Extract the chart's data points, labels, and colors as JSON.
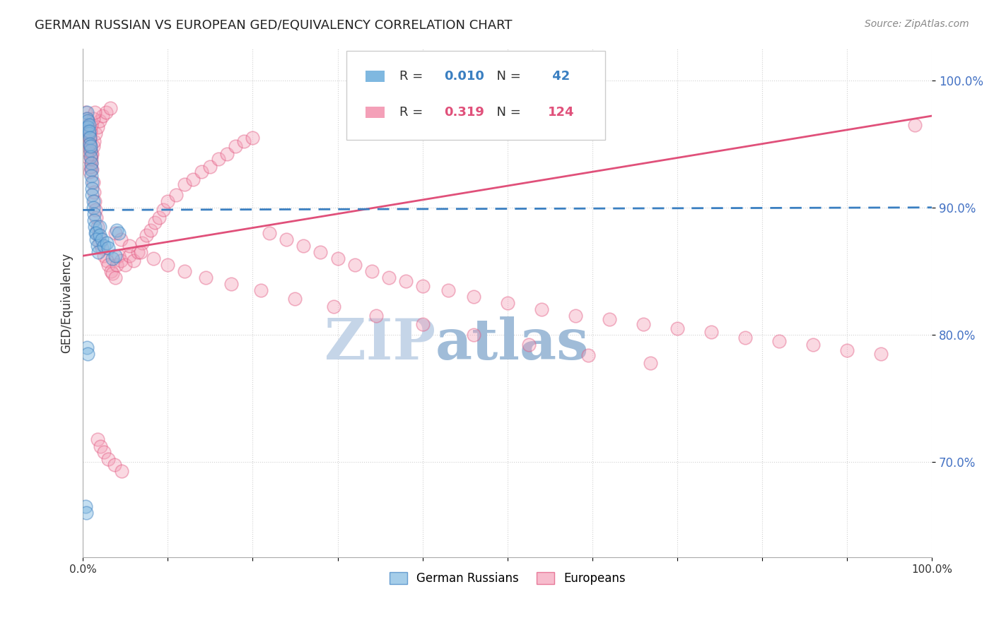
{
  "title": "GERMAN RUSSIAN VS EUROPEAN GED/EQUIVALENCY CORRELATION CHART",
  "source": "Source: ZipAtlas.com",
  "ylabel": "GED/Equivalency",
  "x_min": 0.0,
  "x_max": 1.0,
  "y_min": 0.625,
  "y_max": 1.025,
  "yticks": [
    0.7,
    0.8,
    0.9,
    1.0
  ],
  "ytick_labels": [
    "70.0%",
    "80.0%",
    "90.0%",
    "100.0%"
  ],
  "xticks": [
    0.0,
    0.1,
    0.2,
    0.3,
    0.4,
    0.5,
    0.6,
    0.7,
    0.8,
    0.9,
    1.0
  ],
  "xtick_labels": [
    "0.0%",
    "",
    "",
    "",
    "",
    "",
    "",
    "",
    "",
    "",
    "100.0%"
  ],
  "blue_R": 0.01,
  "blue_N": 42,
  "pink_R": 0.319,
  "pink_N": 124,
  "blue_color": "#7fb8e0",
  "pink_color": "#f4a0b8",
  "blue_line_color": "#3a7fc1",
  "pink_line_color": "#e0507a",
  "watermark_zip": "ZIP",
  "watermark_atlas": "atlas",
  "watermark_color_zip": "#c5d5e8",
  "watermark_color_atlas": "#a0bcd8",
  "legend_label_blue": "German Russians",
  "legend_label_pink": "Europeans",
  "blue_trend_start_y": 0.898,
  "blue_trend_end_y": 0.9,
  "pink_trend_start_y": 0.862,
  "pink_trend_end_y": 0.972,
  "blue_x": [
    0.005,
    0.005,
    0.006,
    0.006,
    0.007,
    0.007,
    0.007,
    0.008,
    0.008,
    0.009,
    0.009,
    0.009,
    0.01,
    0.01,
    0.01,
    0.011,
    0.011,
    0.011,
    0.012,
    0.012,
    0.013,
    0.013,
    0.014,
    0.015,
    0.016,
    0.016,
    0.017,
    0.018,
    0.02,
    0.02,
    0.022,
    0.025,
    0.028,
    0.03,
    0.035,
    0.038,
    0.04,
    0.042,
    0.003,
    0.004,
    0.005,
    0.006
  ],
  "blue_y": [
    0.975,
    0.97,
    0.968,
    0.963,
    0.958,
    0.965,
    0.96,
    0.955,
    0.95,
    0.945,
    0.94,
    0.948,
    0.935,
    0.93,
    0.925,
    0.92,
    0.915,
    0.91,
    0.905,
    0.9,
    0.895,
    0.89,
    0.885,
    0.88,
    0.88,
    0.875,
    0.87,
    0.865,
    0.885,
    0.878,
    0.875,
    0.87,
    0.872,
    0.868,
    0.86,
    0.862,
    0.882,
    0.88,
    0.665,
    0.66,
    0.79,
    0.785
  ],
  "pink_x": [
    0.003,
    0.003,
    0.004,
    0.005,
    0.005,
    0.006,
    0.006,
    0.007,
    0.007,
    0.008,
    0.008,
    0.009,
    0.009,
    0.01,
    0.01,
    0.011,
    0.012,
    0.013,
    0.014,
    0.015,
    0.016,
    0.017,
    0.018,
    0.02,
    0.022,
    0.025,
    0.028,
    0.03,
    0.033,
    0.035,
    0.038,
    0.04,
    0.042,
    0.045,
    0.05,
    0.055,
    0.06,
    0.065,
    0.07,
    0.075,
    0.08,
    0.085,
    0.09,
    0.095,
    0.1,
    0.11,
    0.12,
    0.13,
    0.14,
    0.15,
    0.16,
    0.17,
    0.18,
    0.19,
    0.2,
    0.22,
    0.24,
    0.26,
    0.28,
    0.3,
    0.32,
    0.34,
    0.36,
    0.38,
    0.4,
    0.43,
    0.46,
    0.5,
    0.54,
    0.58,
    0.62,
    0.66,
    0.7,
    0.74,
    0.78,
    0.82,
    0.86,
    0.9,
    0.94,
    0.98,
    0.008,
    0.009,
    0.01,
    0.011,
    0.012,
    0.013,
    0.015,
    0.017,
    0.02,
    0.023,
    0.027,
    0.032,
    0.038,
    0.045,
    0.055,
    0.068,
    0.083,
    0.1,
    0.12,
    0.145,
    0.175,
    0.21,
    0.25,
    0.295,
    0.345,
    0.4,
    0.46,
    0.525,
    0.595,
    0.668,
    0.005,
    0.006,
    0.007,
    0.008,
    0.009,
    0.01,
    0.012,
    0.014,
    0.017,
    0.021,
    0.025,
    0.03,
    0.037,
    0.046
  ],
  "pink_y": [
    0.968,
    0.975,
    0.965,
    0.97,
    0.96,
    0.955,
    0.963,
    0.95,
    0.958,
    0.945,
    0.952,
    0.94,
    0.947,
    0.935,
    0.942,
    0.93,
    0.92,
    0.912,
    0.905,
    0.898,
    0.892,
    0.885,
    0.878,
    0.872,
    0.868,
    0.862,
    0.858,
    0.855,
    0.85,
    0.848,
    0.845,
    0.855,
    0.862,
    0.858,
    0.855,
    0.862,
    0.858,
    0.865,
    0.872,
    0.878,
    0.882,
    0.888,
    0.892,
    0.898,
    0.905,
    0.91,
    0.918,
    0.922,
    0.928,
    0.932,
    0.938,
    0.942,
    0.948,
    0.952,
    0.955,
    0.88,
    0.875,
    0.87,
    0.865,
    0.86,
    0.855,
    0.85,
    0.845,
    0.842,
    0.838,
    0.835,
    0.83,
    0.825,
    0.82,
    0.815,
    0.812,
    0.808,
    0.805,
    0.802,
    0.798,
    0.795,
    0.792,
    0.788,
    0.785,
    0.965,
    0.928,
    0.932,
    0.938,
    0.942,
    0.948,
    0.952,
    0.958,
    0.963,
    0.968,
    0.972,
    0.975,
    0.978,
    0.88,
    0.875,
    0.87,
    0.865,
    0.86,
    0.855,
    0.85,
    0.845,
    0.84,
    0.835,
    0.828,
    0.822,
    0.815,
    0.808,
    0.8,
    0.792,
    0.784,
    0.778,
    0.94,
    0.945,
    0.95,
    0.955,
    0.96,
    0.965,
    0.97,
    0.975,
    0.718,
    0.712,
    0.708,
    0.702,
    0.698,
    0.693
  ]
}
